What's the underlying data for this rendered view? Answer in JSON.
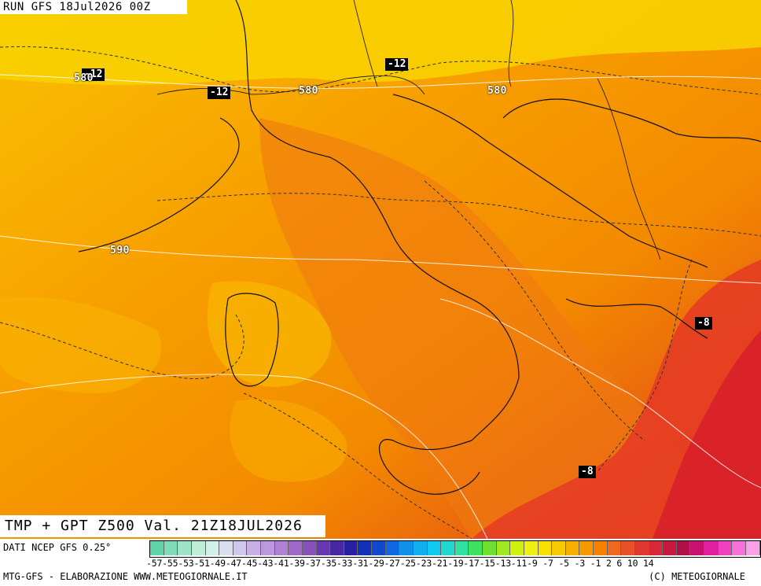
{
  "run_label": "RUN GFS 18Jul2026 00Z",
  "product_label": "TMP + GPT Z500 Val. 21Z18JUL2026",
  "source_label": "DATI NCEP GFS 0.25°",
  "credit_left": "MTG-GFS - ELABORAZIONE WWW.METEOGIORNALE.IT",
  "credit_right": "(C) METEOGIORNALE",
  "temperature_labels": [
    "-12",
    "-12",
    "-12",
    "-8",
    "-8"
  ],
  "geopotential_labels": [
    "580",
    "580",
    "580",
    "590"
  ],
  "legend_ticks": "-57-55-53-51-49-47-45-43-41-39-37-35-33-31-29-27-25-23-21-19-17-15-13-11-9 -7 -5 -3 -1  2  6 10 14",
  "legend_colors": [
    "#5fd4a8",
    "#7fdcb8",
    "#9fe4c8",
    "#bfeed8",
    "#d0f0e8",
    "#d8e0f0",
    "#d0c8ec",
    "#c8b0e4",
    "#bc98dc",
    "#b080d4",
    "#a068c8",
    "#8850bc",
    "#6838b0",
    "#4828a0",
    "#2820a0",
    "#1030b8",
    "#1048d0",
    "#1068e0",
    "#1090e8",
    "#10b0f0",
    "#10c8f0",
    "#20d8d0",
    "#30e0a0",
    "#40e060",
    "#70e030",
    "#a0e820",
    "#d0f010",
    "#f0f010",
    "#f8e000",
    "#f8c800",
    "#f8b000",
    "#f89800",
    "#f88000",
    "#f06820",
    "#e85028",
    "#e03830",
    "#d82838",
    "#c81840",
    "#b01048",
    "#c81070",
    "#e020a0",
    "#f040c0",
    "#f870d8",
    "#fca0e8"
  ]
}
